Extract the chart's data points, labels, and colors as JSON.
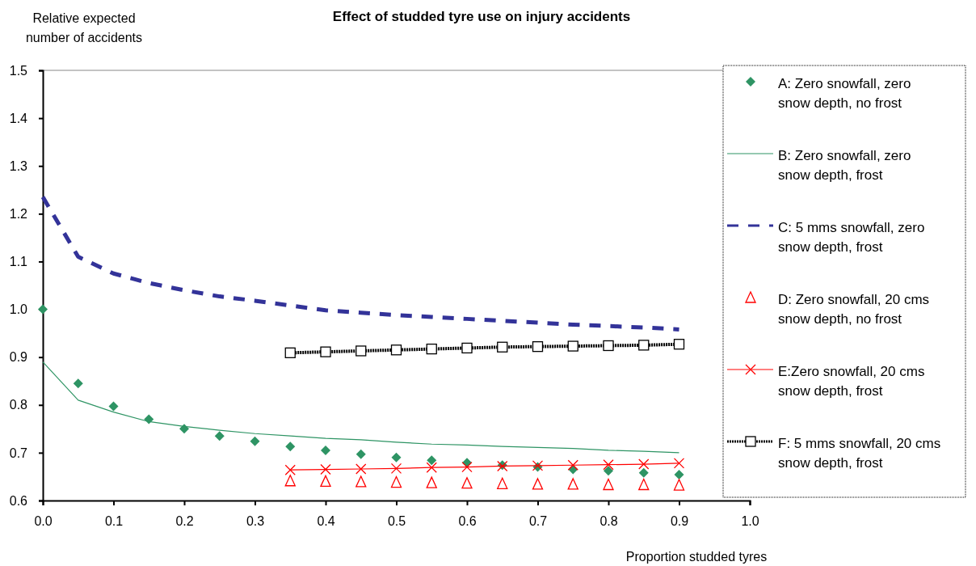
{
  "chart_data": {
    "type": "line",
    "title": "Effect of studded tyre use on injury accidents",
    "ylabel": "Relative expected number of accidents",
    "xlabel": "Proportion studded tyres",
    "xlim": [
      0,
      1.0
    ],
    "xticks": [
      {
        "value": 0,
        "label": "0.0"
      },
      0.1,
      0.2,
      0.3,
      0.4,
      0.5,
      0.6,
      0.7,
      0.8,
      0.9,
      {
        "value": 1,
        "label": "1.0"
      }
    ],
    "ylim": [
      0.6,
      1.5
    ],
    "yticks": [
      {
        "value": 0.6,
        "label": "0.6"
      },
      {
        "value": 0.7,
        "label": "0.7"
      },
      {
        "value": 0.8,
        "label": "0.8"
      },
      {
        "value": 0.9,
        "label": "0.9"
      },
      {
        "value": 1.0,
        "label": "1.0"
      },
      {
        "value": 1.1,
        "label": "1.1"
      },
      {
        "value": 1.2,
        "label": "1.2"
      },
      {
        "value": 1.3,
        "label": "1.3"
      },
      {
        "value": 1.4,
        "label": "1.4"
      },
      {
        "value": 1.5,
        "label": "1.5"
      }
    ],
    "grid": false,
    "legend": "right",
    "series": [
      {
        "name": "A: Zero snowfall, zero snow depth, no frost",
        "type": "scatter",
        "marker": "diamond",
        "color": "#2e9464",
        "x": [
          0,
          0.05,
          0.1,
          0.15,
          0.2,
          0.25,
          0.3,
          0.35,
          0.4,
          0.45,
          0.5,
          0.55,
          0.6,
          0.65,
          0.7,
          0.75,
          0.8,
          0.85,
          0.9
        ],
        "values": [
          1.0,
          0.845,
          0.797,
          0.77,
          0.75,
          0.735,
          0.724,
          0.713,
          0.705,
          0.697,
          0.69,
          0.684,
          0.679,
          0.674,
          0.67,
          0.665,
          0.662,
          0.658,
          0.654
        ]
      },
      {
        "name": "B: Zero snowfall, zero snow depth, frost",
        "marker": "none",
        "line_style": "solid",
        "color": "#2e9464",
        "x": [
          0,
          0.05,
          0.1,
          0.15,
          0.2,
          0.25,
          0.3,
          0.35,
          0.4,
          0.45,
          0.5,
          0.55,
          0.6,
          0.65,
          0.7,
          0.75,
          0.8,
          0.85,
          0.9
        ],
        "values": [
          0.89,
          0.81,
          0.785,
          0.765,
          0.755,
          0.747,
          0.74,
          0.735,
          0.73,
          0.727,
          0.722,
          0.718,
          0.716,
          0.713,
          0.711,
          0.709,
          0.705,
          0.703,
          0.7
        ]
      },
      {
        "name": "C: 5 mms snowfall, zero snow depth, frost",
        "marker": "none",
        "line_style": "dashed",
        "color": "#333399",
        "x": [
          0,
          0.05,
          0.1,
          0.15,
          0.2,
          0.25,
          0.3,
          0.35,
          0.4,
          0.45,
          0.5,
          0.55,
          0.6,
          0.65,
          0.7,
          0.75,
          0.8,
          0.85,
          0.9
        ],
        "values": [
          1.235,
          1.11,
          1.075,
          1.055,
          1.04,
          1.027,
          1.018,
          1.008,
          0.998,
          0.993,
          0.988,
          0.984,
          0.98,
          0.976,
          0.972,
          0.968,
          0.965,
          0.962,
          0.958
        ]
      },
      {
        "name": "D: Zero snowfall, 20 cms snow depth, no frost",
        "type": "scatter",
        "marker": "triangle",
        "color": "#ff0000",
        "x": [
          0.35,
          0.4,
          0.45,
          0.5,
          0.55,
          0.6,
          0.65,
          0.7,
          0.75,
          0.8,
          0.85,
          0.9
        ],
        "values": [
          0.641,
          0.64,
          0.639,
          0.638,
          0.637,
          0.636,
          0.635,
          0.634,
          0.634,
          0.633,
          0.633,
          0.632
        ]
      },
      {
        "name": "E:Zero snowfall, 20 cms snow depth, frost",
        "marker": "cross",
        "line_style": "solid",
        "color": "#ff0000",
        "x": [
          0.35,
          0.4,
          0.45,
          0.5,
          0.55,
          0.6,
          0.65,
          0.7,
          0.75,
          0.8,
          0.85,
          0.9
        ],
        "values": [
          0.664,
          0.665,
          0.666,
          0.667,
          0.669,
          0.67,
          0.672,
          0.673,
          0.674,
          0.675,
          0.676,
          0.678
        ]
      },
      {
        "name": "F: 5 mms snowfall, 20 cms snow depth, frost",
        "marker": "square",
        "line_style": "dotted",
        "color": "#000000",
        "x": [
          0.35,
          0.4,
          0.45,
          0.5,
          0.55,
          0.6,
          0.65,
          0.7,
          0.75,
          0.8,
          0.85,
          0.9
        ],
        "values": [
          0.909,
          0.911,
          0.913,
          0.915,
          0.917,
          0.919,
          0.921,
          0.922,
          0.923,
          0.924,
          0.925,
          0.927
        ]
      }
    ]
  }
}
